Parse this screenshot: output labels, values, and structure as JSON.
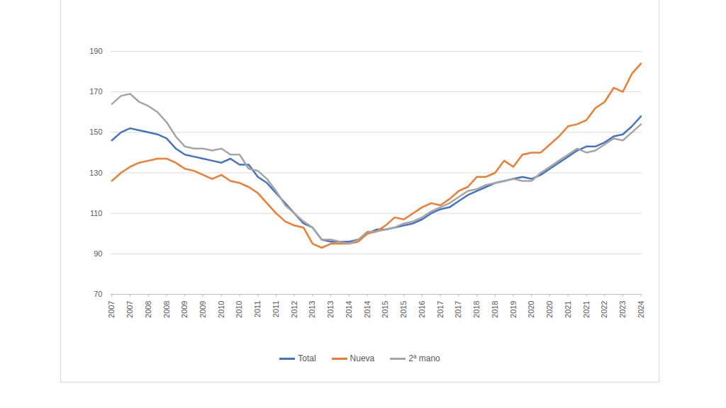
{
  "chart_data": {
    "type": "line",
    "categories": [
      "2007",
      null,
      "2007",
      null,
      "2008",
      null,
      "2008",
      null,
      "2009",
      null,
      "2009",
      null,
      "2010",
      null,
      "2010",
      null,
      "2011",
      null,
      "2011",
      null,
      "2012",
      null,
      "2013",
      null,
      "2013",
      null,
      "2014",
      null,
      "2014",
      null,
      "2015",
      null,
      "2015",
      null,
      "2016",
      null,
      "2017",
      null,
      "2017",
      null,
      "2018",
      null,
      "2018",
      null,
      "2019",
      null,
      "2020",
      null,
      "2020",
      null,
      "2021",
      null,
      "2021",
      null,
      "2022",
      null,
      "2023",
      null,
      "2024"
    ],
    "series": [
      {
        "name": "Total",
        "color": "#4472c4",
        "values": [
          146,
          150,
          152,
          151,
          150,
          149,
          147,
          142,
          139,
          138,
          137,
          136,
          135,
          137,
          134,
          134,
          128,
          125,
          120,
          115,
          110,
          105,
          103,
          97,
          96,
          96,
          96,
          97,
          100,
          102,
          102,
          103,
          104,
          105,
          107,
          110,
          112,
          113,
          116,
          119,
          121,
          123,
          125,
          126,
          127,
          128,
          127,
          129,
          132,
          135,
          138,
          141,
          143,
          143,
          145,
          148,
          149,
          153,
          158
        ]
      },
      {
        "name": "Nueva",
        "color": "#ed7d31",
        "values": [
          126,
          130,
          133,
          135,
          136,
          137,
          137,
          135,
          132,
          131,
          129,
          127,
          129,
          126,
          125,
          123,
          120,
          115,
          110,
          106,
          104,
          103,
          95,
          93,
          95,
          95,
          95,
          96,
          100,
          101,
          104,
          108,
          107,
          110,
          113,
          115,
          114,
          117,
          121,
          123,
          128,
          128,
          130,
          136,
          133,
          139,
          140,
          140,
          144,
          148,
          153,
          154,
          156,
          162,
          165,
          172,
          170,
          179,
          184
        ]
      },
      {
        "name": "2ª mano",
        "color": "#a5a5a5",
        "values": [
          164,
          168,
          169,
          165,
          163,
          160,
          155,
          148,
          143,
          142,
          142,
          141,
          142,
          139,
          139,
          132,
          131,
          127,
          121,
          114,
          110,
          106,
          103,
          97,
          97,
          96,
          95,
          97,
          101,
          101,
          102,
          103,
          105,
          106,
          108,
          111,
          113,
          115,
          118,
          121,
          122,
          124,
          125,
          126,
          127,
          126,
          126,
          130,
          133,
          136,
          139,
          142,
          140,
          141,
          144,
          147,
          146,
          150,
          154
        ]
      }
    ],
    "ylim": [
      70,
      190
    ],
    "yticks": [
      70,
      90,
      110,
      130,
      150,
      170,
      190
    ],
    "grid": true,
    "legend": "bottom"
  }
}
